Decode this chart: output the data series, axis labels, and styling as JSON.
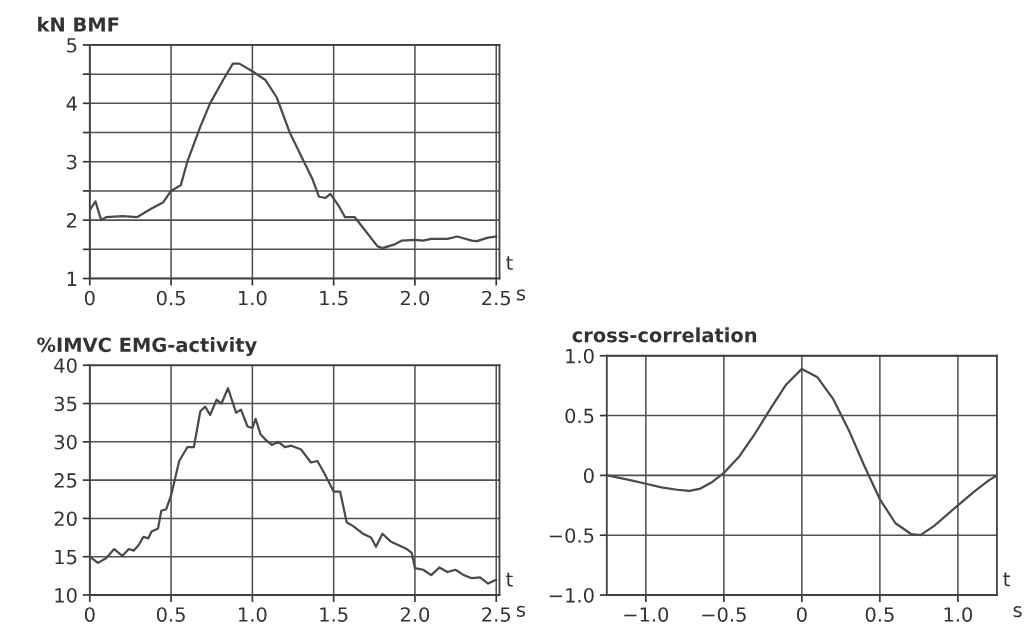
{
  "chart_data": [
    {
      "type": "line",
      "ylabel": "kN BMF",
      "xlabel": "t",
      "annotations": [
        "s"
      ],
      "grid": true,
      "marker": "none",
      "line_style": "solid",
      "xlim": [
        0,
        2.52
      ],
      "ylim": [
        1,
        5
      ],
      "xticks": [
        0,
        0.5,
        {
          "value": 1,
          "label": "1.0"
        },
        1.5,
        {
          "value": 2,
          "label": "2.0"
        },
        2.5
      ],
      "yticks": [
        1,
        {
          "value": 1.5,
          "label": null
        },
        2,
        {
          "value": 2.5,
          "label": null
        },
        3,
        {
          "value": 3.5,
          "label": null
        },
        4,
        {
          "value": 4.5,
          "label": null
        },
        5
      ],
      "series": [
        {
          "color": "#4a4a4a",
          "x": [
            0,
            0.035,
            0.07,
            0.1,
            0.2,
            0.29,
            0.38,
            0.45,
            0.5,
            0.56,
            0.6,
            0.68,
            0.74,
            0.82,
            0.88,
            0.92,
            1.0,
            1.08,
            1.15,
            1.23,
            1.3,
            1.37,
            1.41,
            1.45,
            1.48,
            1.53,
            1.57,
            1.63,
            1.7,
            1.77,
            1.8,
            1.87,
            1.92,
            2.0,
            2.05,
            2.1,
            2.2,
            2.26,
            2.35,
            2.38,
            2.45,
            2.5
          ],
          "values": [
            2.17,
            2.32,
            2.0,
            2.05,
            2.07,
            2.05,
            2.2,
            2.3,
            2.5,
            2.6,
            3.0,
            3.6,
            4.0,
            4.4,
            4.68,
            4.68,
            4.55,
            4.4,
            4.1,
            3.5,
            3.1,
            2.7,
            2.4,
            2.38,
            2.45,
            2.25,
            2.05,
            2.05,
            1.8,
            1.55,
            1.52,
            1.58,
            1.65,
            1.66,
            1.65,
            1.68,
            1.68,
            1.72,
            1.65,
            1.64,
            1.7,
            1.72
          ]
        }
      ]
    },
    {
      "type": "line",
      "ylabel": "%IMVC EMG-activity",
      "xlabel": "t",
      "annotations": [
        "s"
      ],
      "grid": true,
      "marker": "none",
      "line_style": "solid",
      "xlim": [
        0,
        2.52
      ],
      "ylim": [
        10,
        40
      ],
      "xticks": [
        0,
        0.5,
        {
          "value": 1,
          "label": "1.0"
        },
        1.5,
        {
          "value": 2,
          "label": "2.0"
        },
        2.5
      ],
      "yticks": [
        10,
        15,
        20,
        25,
        30,
        35,
        40
      ],
      "series": [
        {
          "color": "#4a4a4a",
          "x": [
            0,
            0.05,
            0.1,
            0.15,
            0.2,
            0.24,
            0.27,
            0.3,
            0.33,
            0.36,
            0.38,
            0.42,
            0.44,
            0.47,
            0.5,
            0.55,
            0.6,
            0.64,
            0.68,
            0.71,
            0.74,
            0.78,
            0.81,
            0.85,
            0.9,
            0.93,
            0.97,
            1.0,
            1.02,
            1.05,
            1.08,
            1.12,
            1.16,
            1.2,
            1.24,
            1.3,
            1.36,
            1.4,
            1.44,
            1.5,
            1.54,
            1.58,
            1.62,
            1.68,
            1.73,
            1.76,
            1.8,
            1.85,
            1.9,
            1.95,
            1.98,
            2.0,
            2.05,
            2.1,
            2.15,
            2.2,
            2.25,
            2.3,
            2.35,
            2.4,
            2.45,
            2.5
          ],
          "values": [
            15,
            14.2,
            14.8,
            16,
            15.1,
            16,
            15.8,
            16.5,
            17.6,
            17.4,
            18.3,
            18.7,
            21,
            21.2,
            23,
            27.5,
            29.3,
            29.3,
            34,
            34.6,
            33.5,
            35.5,
            35,
            37,
            33.8,
            34.2,
            32,
            31.8,
            33,
            31,
            30.3,
            29.6,
            30,
            29.3,
            29.5,
            29,
            27.3,
            27.5,
            26,
            23.5,
            23.5,
            19.5,
            19,
            18,
            17.5,
            16.3,
            18,
            17,
            16.5,
            16,
            15.5,
            13.5,
            13.3,
            12.6,
            13.6,
            13,
            13.3,
            12.6,
            12.2,
            12.3,
            11.5,
            12
          ]
        }
      ]
    },
    {
      "type": "line",
      "ylabel": "cross-correlation",
      "xlabel": "t",
      "annotations": [
        "s"
      ],
      "grid": true,
      "marker": "none",
      "line_style": "solid",
      "xlim": [
        -1.25,
        1.25
      ],
      "ylim": [
        -1,
        1
      ],
      "xticks": [
        {
          "value": -1,
          "label": "−1.0"
        },
        {
          "value": -0.5,
          "label": "−0.5"
        },
        0,
        0.5,
        {
          "value": 1,
          "label": "1.0"
        }
      ],
      "yticks": [
        {
          "value": -1,
          "label": "−1.0"
        },
        {
          "value": -0.5,
          "label": "−0.5"
        },
        0,
        0.5,
        {
          "value": 1,
          "label": "1.0"
        }
      ],
      "series": [
        {
          "color": "#4a4a4a",
          "x": [
            -1.25,
            -1.1,
            -1.0,
            -0.9,
            -0.8,
            -0.72,
            -0.65,
            -0.58,
            -0.5,
            -0.4,
            -0.3,
            -0.2,
            -0.1,
            0,
            0.1,
            0.2,
            0.3,
            0.4,
            0.5,
            0.6,
            0.7,
            0.76,
            0.85,
            1.0,
            1.1,
            1.2,
            1.25
          ],
          "values": [
            0,
            -0.04,
            -0.07,
            -0.1,
            -0.12,
            -0.13,
            -0.11,
            -0.06,
            0.02,
            0.16,
            0.35,
            0.56,
            0.76,
            0.89,
            0.82,
            0.64,
            0.38,
            0.08,
            -0.2,
            -0.4,
            -0.49,
            -0.5,
            -0.42,
            -0.25,
            -0.14,
            -0.04,
            0
          ]
        }
      ]
    }
  ]
}
